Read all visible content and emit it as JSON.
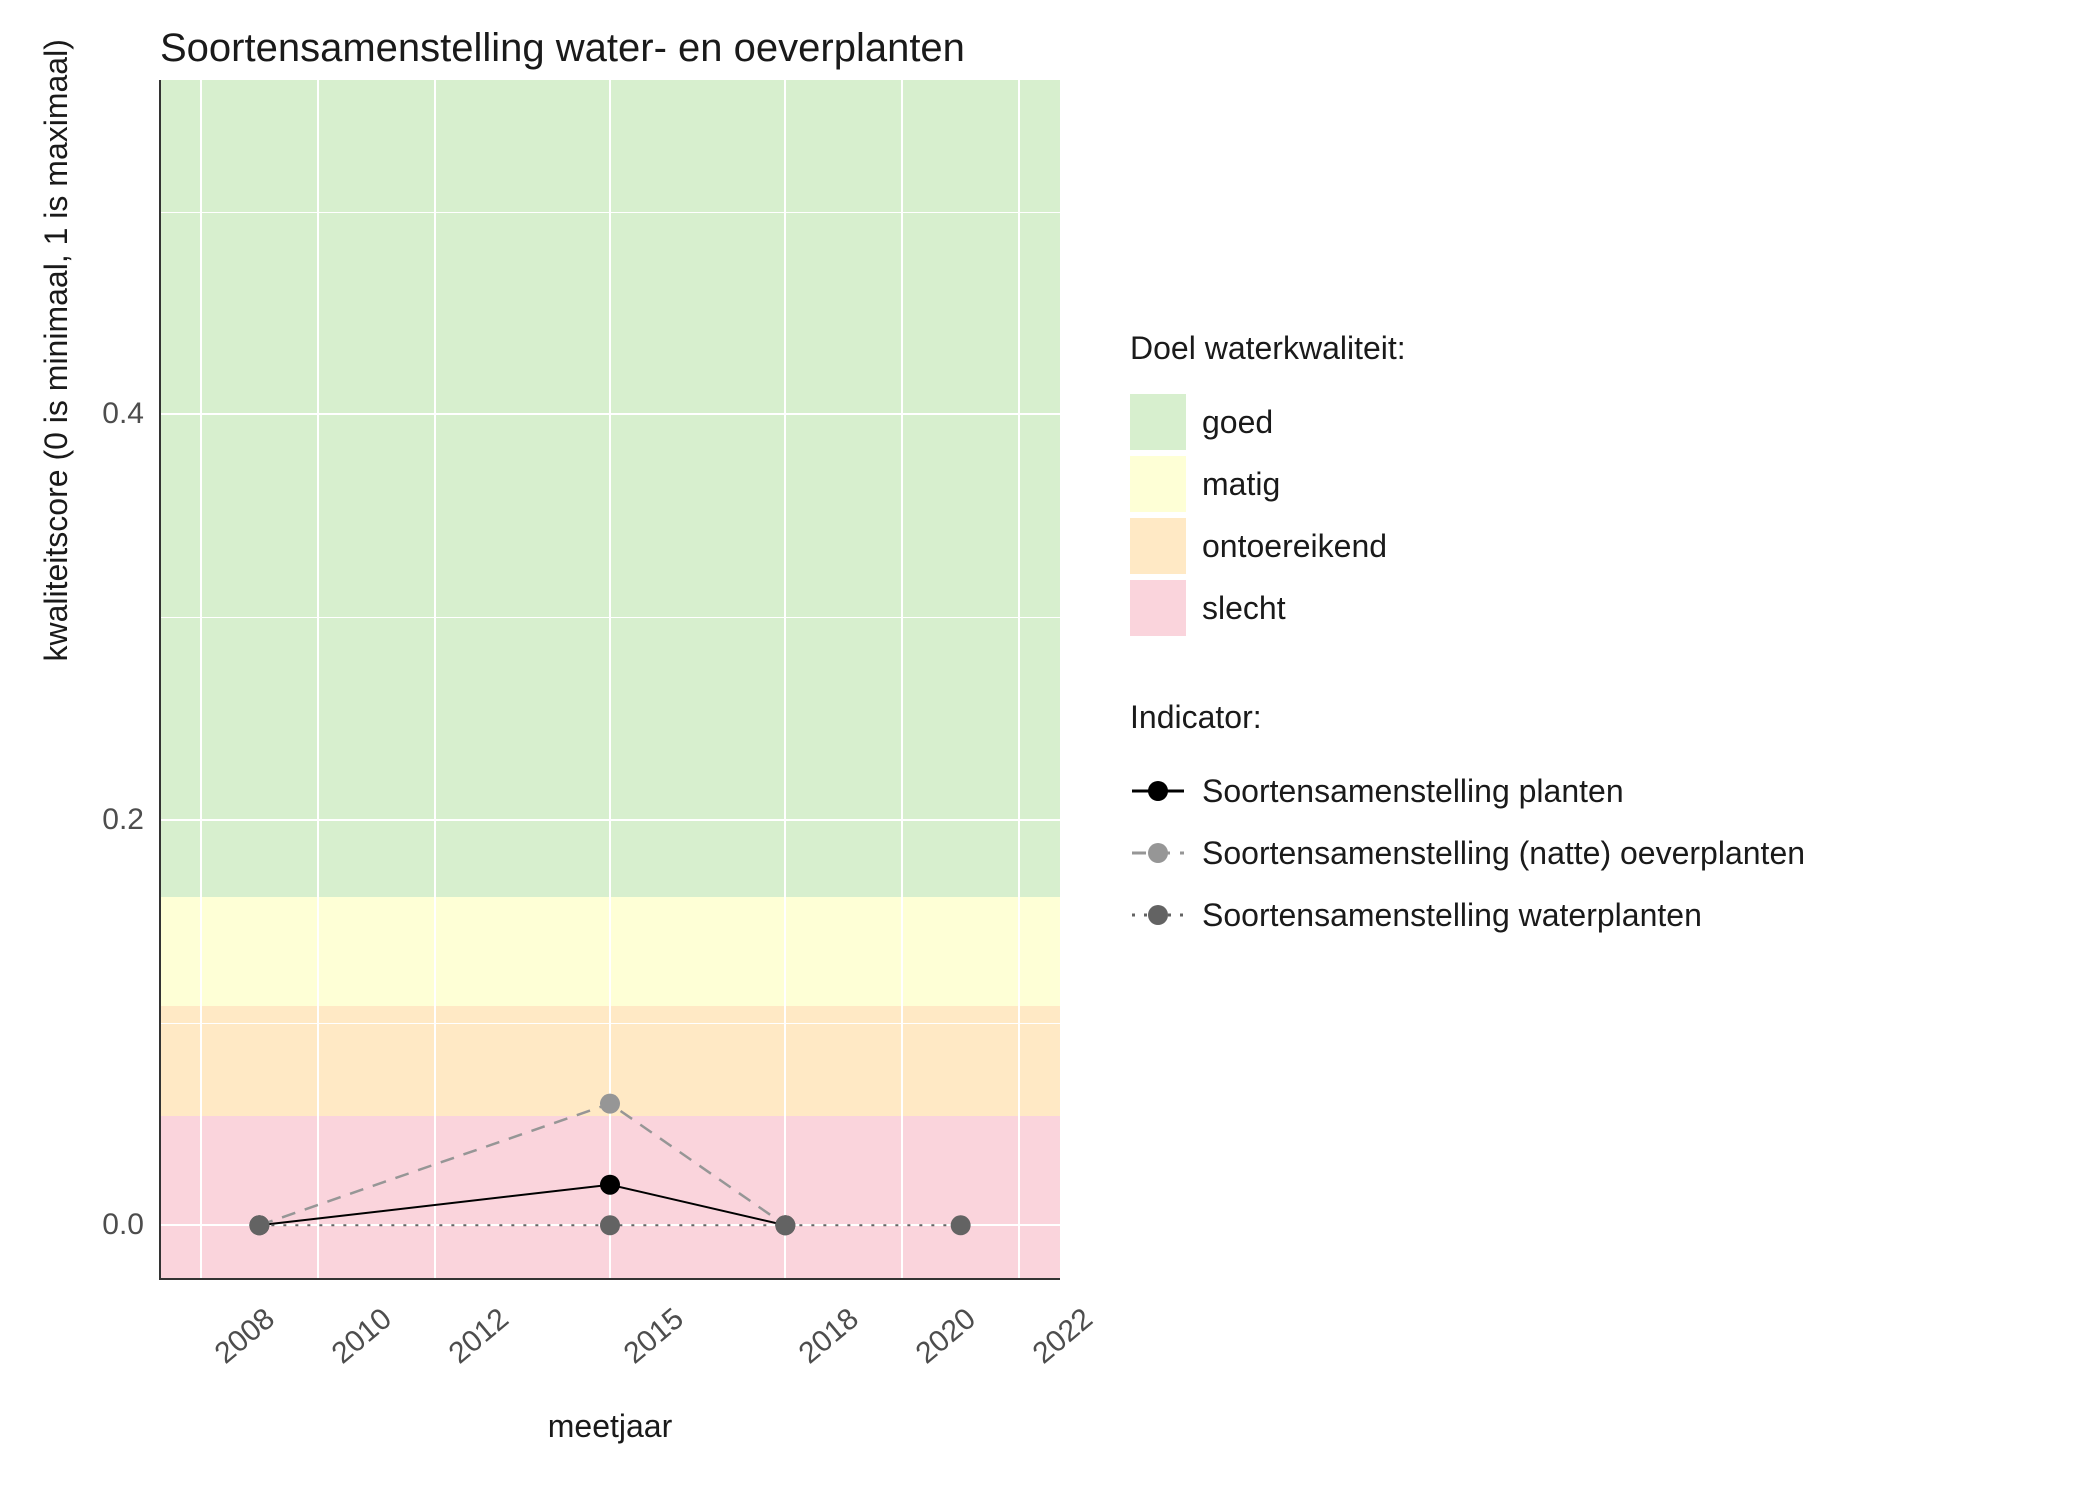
{
  "title": "Soortensamenstelling water- en oeverplanten",
  "axes": {
    "xlabel": "meetjaar",
    "ylabel": "kwaliteitscore (0 is minimaal, 1 is maximaal)",
    "xlim": [
      2007.3,
      2022.7
    ],
    "ylim": [
      -0.027,
      0.565
    ],
    "xticks": [
      2008,
      2010,
      2012,
      2015,
      2018,
      2020,
      2022
    ],
    "yticks": [
      0.0,
      0.2,
      0.4
    ],
    "tick_fontsize": 30,
    "label_fontsize": 32,
    "title_fontsize": 40,
    "grid_color": "#ffffff",
    "axis_line_color": "#333333",
    "text_color": "#1a1a1a",
    "tick_text_color": "#4d4d4d",
    "panel_bg": "#ffffff"
  },
  "bands": [
    {
      "label": "goed",
      "from": 0.162,
      "to": 0.565,
      "fill": "#d7efce"
    },
    {
      "label": "matig",
      "from": 0.108,
      "to": 0.162,
      "fill": "#feffd6"
    },
    {
      "label": "ontoereikend",
      "from": 0.054,
      "to": 0.108,
      "fill": "#ffe9c5"
    },
    {
      "label": "slecht",
      "from": -0.027,
      "to": 0.054,
      "fill": "#fad4dc"
    }
  ],
  "series": [
    {
      "name": "Soortensamenstelling planten",
      "color": "#000000",
      "marker": "circle",
      "marker_size": 10,
      "line_dash": "solid",
      "line_width": 2,
      "points": [
        {
          "x": 2009,
          "y": 0.0
        },
        {
          "x": 2015,
          "y": 0.02
        },
        {
          "x": 2018,
          "y": 0.0
        }
      ]
    },
    {
      "name": "Soortensamenstelling (natte) oeverplanten",
      "color": "#969696",
      "marker": "circle",
      "marker_size": 10,
      "line_dash": "dashed",
      "line_width": 2.5,
      "points": [
        {
          "x": 2009,
          "y": 0.0
        },
        {
          "x": 2015,
          "y": 0.06
        },
        {
          "x": 2018,
          "y": 0.0
        }
      ]
    },
    {
      "name": "Soortensamenstelling waterplanten",
      "color": "#636363",
      "marker": "circle",
      "marker_size": 10,
      "line_dash": "dotted",
      "line_width": 2,
      "points": [
        {
          "x": 2009,
          "y": 0.0
        },
        {
          "x": 2015,
          "y": 0.0
        },
        {
          "x": 2018,
          "y": 0.0
        },
        {
          "x": 2021,
          "y": 0.0
        }
      ]
    }
  ],
  "legend": {
    "quality_title": "Doel waterkwaliteit:",
    "quality_items": [
      {
        "label": "goed",
        "fill": "#d7efce"
      },
      {
        "label": "matig",
        "fill": "#feffd6"
      },
      {
        "label": "ontoereikend",
        "fill": "#ffe9c5"
      },
      {
        "label": "slecht",
        "fill": "#fad4dc"
      }
    ],
    "indicator_title": "Indicator:",
    "indicator_items": [
      {
        "label": "Soortensamenstelling planten",
        "color": "#000000",
        "dash": "solid"
      },
      {
        "label": "Soortensamenstelling (natte) oeverplanten",
        "color": "#969696",
        "dash": "dashed"
      },
      {
        "label": "Soortensamenstelling waterplanten",
        "color": "#636363",
        "dash": "dotted"
      }
    ]
  },
  "dash_patterns": {
    "solid": "",
    "dashed": "14 10",
    "dotted": "3 9"
  }
}
